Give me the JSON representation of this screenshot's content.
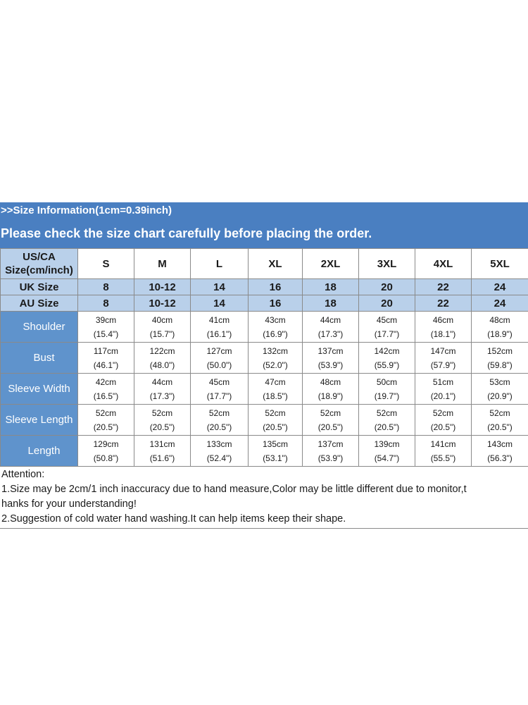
{
  "header": {
    "info": ">>Size Information(1cm=0.39inch)",
    "warning": "Please check the size chart carefully before placing the order."
  },
  "table": {
    "us_label": [
      "US/CA",
      "Size(cm/inch)"
    ],
    "sizes": [
      "S",
      "M",
      "L",
      "XL",
      "2XL",
      "3XL",
      "4XL",
      "5XL"
    ],
    "uk_label": "UK Size",
    "uk": [
      "8",
      "10-12",
      "14",
      "16",
      "18",
      "20",
      "22",
      "24"
    ],
    "au_label": "AU Size",
    "au": [
      "8",
      "10-12",
      "14",
      "16",
      "18",
      "20",
      "22",
      "24"
    ],
    "measurements": [
      {
        "label": "Shoulder",
        "cm": [
          "39cm",
          "40cm",
          "41cm",
          "43cm",
          "44cm",
          "45cm",
          "46cm",
          "48cm"
        ],
        "inch": [
          "(15.4\")",
          "(15.7\")",
          "(16.1\")",
          "(16.9\")",
          "(17.3\")",
          "(17.7\")",
          "(18.1\")",
          "(18.9\")"
        ]
      },
      {
        "label": "Bust",
        "cm": [
          "117cm",
          "122cm",
          "127cm",
          "132cm",
          "137cm",
          "142cm",
          "147cm",
          "152cm"
        ],
        "inch": [
          "(46.1\")",
          "(48.0\")",
          "(50.0\")",
          "(52.0\")",
          "(53.9\")",
          "(55.9\")",
          "(57.9\")",
          "(59.8\")"
        ]
      },
      {
        "label": "Sleeve Width",
        "cm": [
          "42cm",
          "44cm",
          "45cm",
          "47cm",
          "48cm",
          "50cm",
          "51cm",
          "53cm"
        ],
        "inch": [
          "(16.5\")",
          "(17.3\")",
          "(17.7\")",
          "(18.5\")",
          "(18.9\")",
          "(19.7\")",
          "(20.1\")",
          "(20.9\")"
        ]
      },
      {
        "label": "Sleeve Length",
        "cm": [
          "52cm",
          "52cm",
          "52cm",
          "52cm",
          "52cm",
          "52cm",
          "52cm",
          "52cm"
        ],
        "inch": [
          "(20.5\")",
          "(20.5\")",
          "(20.5\")",
          "(20.5\")",
          "(20.5\")",
          "(20.5\")",
          "(20.5\")",
          "(20.5\")"
        ]
      },
      {
        "label": "Length",
        "cm": [
          "129cm",
          "131cm",
          "133cm",
          "135cm",
          "137cm",
          "139cm",
          "141cm",
          "143cm"
        ],
        "inch": [
          "(50.8\")",
          "(51.6\")",
          "(52.4\")",
          "(53.1\")",
          "(53.9\")",
          "(54.7\")",
          "(55.5\")",
          "(56.3\")"
        ]
      }
    ]
  },
  "notes": {
    "title": "Attention:",
    "line1a": "1.Size may be 2cm/1 inch inaccuracy due to hand measure,Color may be little different due to monitor,t",
    "line1b": "hanks for your understanding!",
    "line2": "2.Suggestion of cold water hand washing.It can help items keep their shape."
  },
  "colors": {
    "banner": "#4a7fc1",
    "header_cells": "#b9d0ea",
    "label_cells": "#5f93cc"
  }
}
